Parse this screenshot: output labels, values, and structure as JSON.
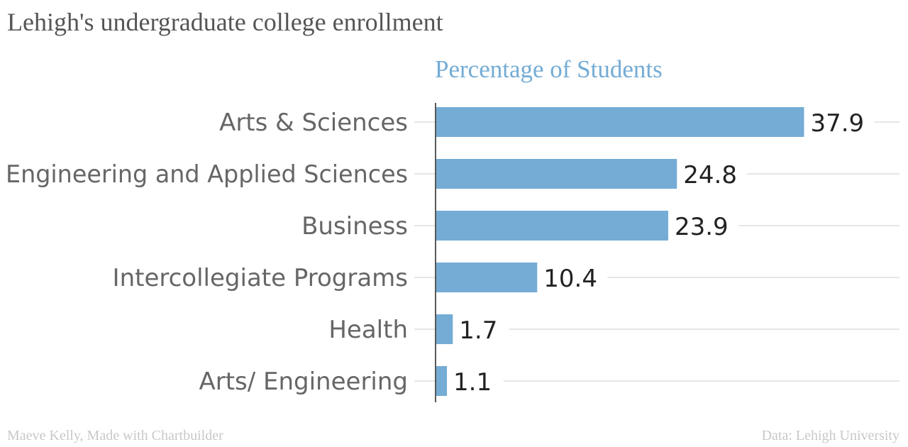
{
  "chart_data": {
    "type": "bar",
    "orientation": "horizontal",
    "title": "Lehigh's undergraduate college enrollment",
    "series_title": "Percentage of Students",
    "categories": [
      "Arts & Sciences",
      "Engineering and Applied Sciences",
      "Business",
      "Intercollegiate Programs",
      "Health",
      "Arts/ Engineering"
    ],
    "values": [
      37.9,
      24.8,
      23.9,
      10.4,
      1.7,
      1.1
    ],
    "value_labels": [
      "37.9",
      "24.8",
      "23.9",
      "10.4",
      "1.7",
      "1.1"
    ],
    "xlim": [
      0,
      40
    ],
    "grid": true,
    "bar_color": "#74acd5",
    "credit_left": "Maeve Kelly, Made with Chartbuilder",
    "credit_right": "Data: Lehigh University"
  }
}
